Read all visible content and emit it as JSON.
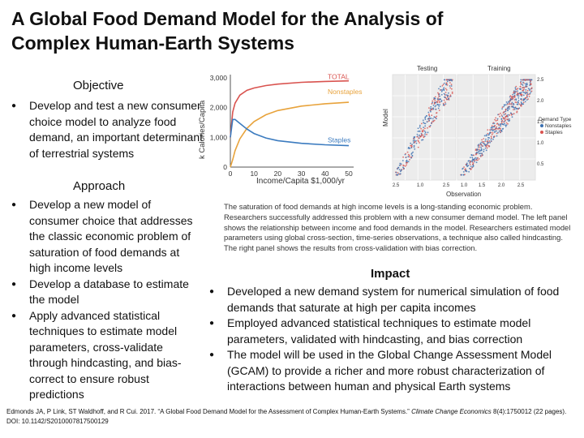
{
  "title": "A Global Food Demand Model for the Analysis of Complex Human-Earth Systems",
  "objective": {
    "heading": "Objective",
    "bullets": [
      "Develop and test a new consumer choice model to analyze food demand, an important determinant of terrestrial systems"
    ]
  },
  "approach": {
    "heading": "Approach",
    "bullets": [
      "Develop a new model of consumer choice that addresses the classic economic problem of saturation of food demands at high income levels",
      "Develop a database to estimate the model",
      "Apply advanced statistical techniques to estimate model parameters, cross-validate through hindcasting, and bias-correct to ensure robust predictions"
    ]
  },
  "impact": {
    "heading": "Impact",
    "bullets": [
      "Developed a new demand system for numerical simulation of food demands that saturate at high per capita incomes",
      "Employed advanced statistical techniques to estimate model parameters, validated with hindcasting, and bias correction",
      "The model will be used in the Global Change Assessment Model (GCAM) to provide a richer and more robust characterization of interactions between human and physical Earth systems"
    ]
  },
  "caption": "The saturation of food demands at high income levels is a long-standing economic problem. Researchers successfully addressed this problem with a new consumer demand model. The left panel shows the relationship between income and food demands in the model. Researchers estimated model parameters using global cross-section, time-series observations, a technique also called hindcasting. The right panel shows the results from cross-validation with bias correction.",
  "citation": {
    "text": "Edmonds JA, P Link, ST Waldhoff, and R Cui. 2017. “A Global Food Demand Model for the Assessment of Complex Human-Earth Systems.”",
    "journal": "Climate Change Economics",
    "details": "8(4):1750012 (22 pages). DOI: 10.1142/S2010007817500129"
  },
  "chart_data": [
    {
      "type": "line",
      "xlabel": "Income/Capita $1,000/yr",
      "ylabel": "k Calories/Capita",
      "x_ticks": [
        "0",
        "10",
        "20",
        "30",
        "40",
        "50"
      ],
      "y_ticks": [
        "0",
        "1,000",
        "2,000",
        "3,000"
      ],
      "xlim": [
        0,
        50
      ],
      "ylim": [
        0,
        3000
      ],
      "series": [
        {
          "name": "TOTAL",
          "color": "#d9534f",
          "x": [
            0,
            1,
            2,
            4,
            7,
            10,
            15,
            20,
            30,
            40,
            50
          ],
          "y": [
            1000,
            1850,
            2150,
            2420,
            2580,
            2660,
            2740,
            2790,
            2850,
            2880,
            2900
          ]
        },
        {
          "name": "Nonstaples",
          "color": "#e8a33c",
          "x": [
            0,
            1,
            2,
            4,
            7,
            10,
            15,
            20,
            30,
            40,
            50
          ],
          "y": [
            0,
            250,
            550,
            950,
            1300,
            1530,
            1760,
            1900,
            2050,
            2130,
            2180
          ]
        },
        {
          "name": "Staples",
          "color": "#3b7bbf",
          "x": [
            0,
            1,
            2,
            4,
            7,
            10,
            15,
            20,
            30,
            40,
            50
          ],
          "y": [
            1000,
            1600,
            1600,
            1470,
            1280,
            1130,
            980,
            890,
            800,
            750,
            720
          ]
        }
      ]
    },
    {
      "type": "scatter",
      "panels": [
        "Testing",
        "Training"
      ],
      "xlabel": "Observation",
      "ylabel": "Model",
      "x_ticks": [
        "2.5",
        "1.0",
        "2.5",
        "1.0",
        "1.5",
        "2.0",
        "2.5"
      ],
      "y_ticks": [
        "2.5",
        "2.0",
        "1.5",
        "1.0",
        "0.5"
      ],
      "legend_title": "Demand Type",
      "series": [
        {
          "name": "Nonstaples",
          "color": "#3b6fb0"
        },
        {
          "name": "Staples",
          "color": "#d9534f"
        }
      ]
    }
  ]
}
